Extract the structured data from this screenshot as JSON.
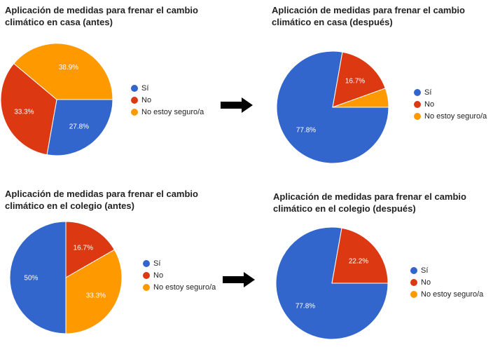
{
  "chart_data": [
    {
      "type": "pie",
      "title": "Aplicación de medidas para frenar el cambio\nclimático en casa (antes)",
      "slices": [
        {
          "label": "Sí",
          "value": 27.8,
          "color": "#3366cc",
          "data_label": "27.8%"
        },
        {
          "label": "No",
          "value": 33.3,
          "color": "#dc3912",
          "data_label": "33.3%"
        },
        {
          "label": "No estoy seguro/a",
          "value": 38.9,
          "color": "#ff9900",
          "data_label": "38.9%"
        }
      ]
    },
    {
      "type": "pie",
      "title": "Aplicación de medidas para frenar el cambio\nclimático en casa (después)",
      "slices": [
        {
          "label": "Sí",
          "value": 77.8,
          "color": "#3366cc",
          "data_label": "77.8%"
        },
        {
          "label": "No",
          "value": 16.7,
          "color": "#dc3912",
          "data_label": "16.7%"
        },
        {
          "label": "No estoy seguro/a",
          "value": 5.5,
          "color": "#ff9900",
          "data_label": ""
        }
      ]
    },
    {
      "type": "pie",
      "title": "Aplicación de medidas para frenar el cambio\nclimático en el colegio (antes)",
      "slices": [
        {
          "label": "Sí",
          "value": 50,
          "color": "#3366cc",
          "data_label": "50%"
        },
        {
          "label": "No",
          "value": 16.7,
          "color": "#dc3912",
          "data_label": "16.7%"
        },
        {
          "label": "No estoy seguro/a",
          "value": 33.3,
          "color": "#ff9900",
          "data_label": "33.3%"
        }
      ]
    },
    {
      "type": "pie",
      "title": "Aplicación de medidas para frenar el cambio\nclimático en el colegio (después)",
      "slices": [
        {
          "label": "Sí",
          "value": 77.8,
          "color": "#3366cc",
          "data_label": "77.8%"
        },
        {
          "label": "No",
          "value": 22.2,
          "color": "#dc3912",
          "data_label": "22.2%"
        },
        {
          "label": "No estoy seguro/a",
          "value": 0,
          "color": "#ff9900",
          "data_label": ""
        }
      ]
    }
  ],
  "legend": {
    "items": [
      {
        "label": "Sí",
        "color": "#3366cc"
      },
      {
        "label": "No",
        "color": "#dc3912"
      },
      {
        "label": "No estoy seguro/a",
        "color": "#ff9900"
      }
    ]
  }
}
